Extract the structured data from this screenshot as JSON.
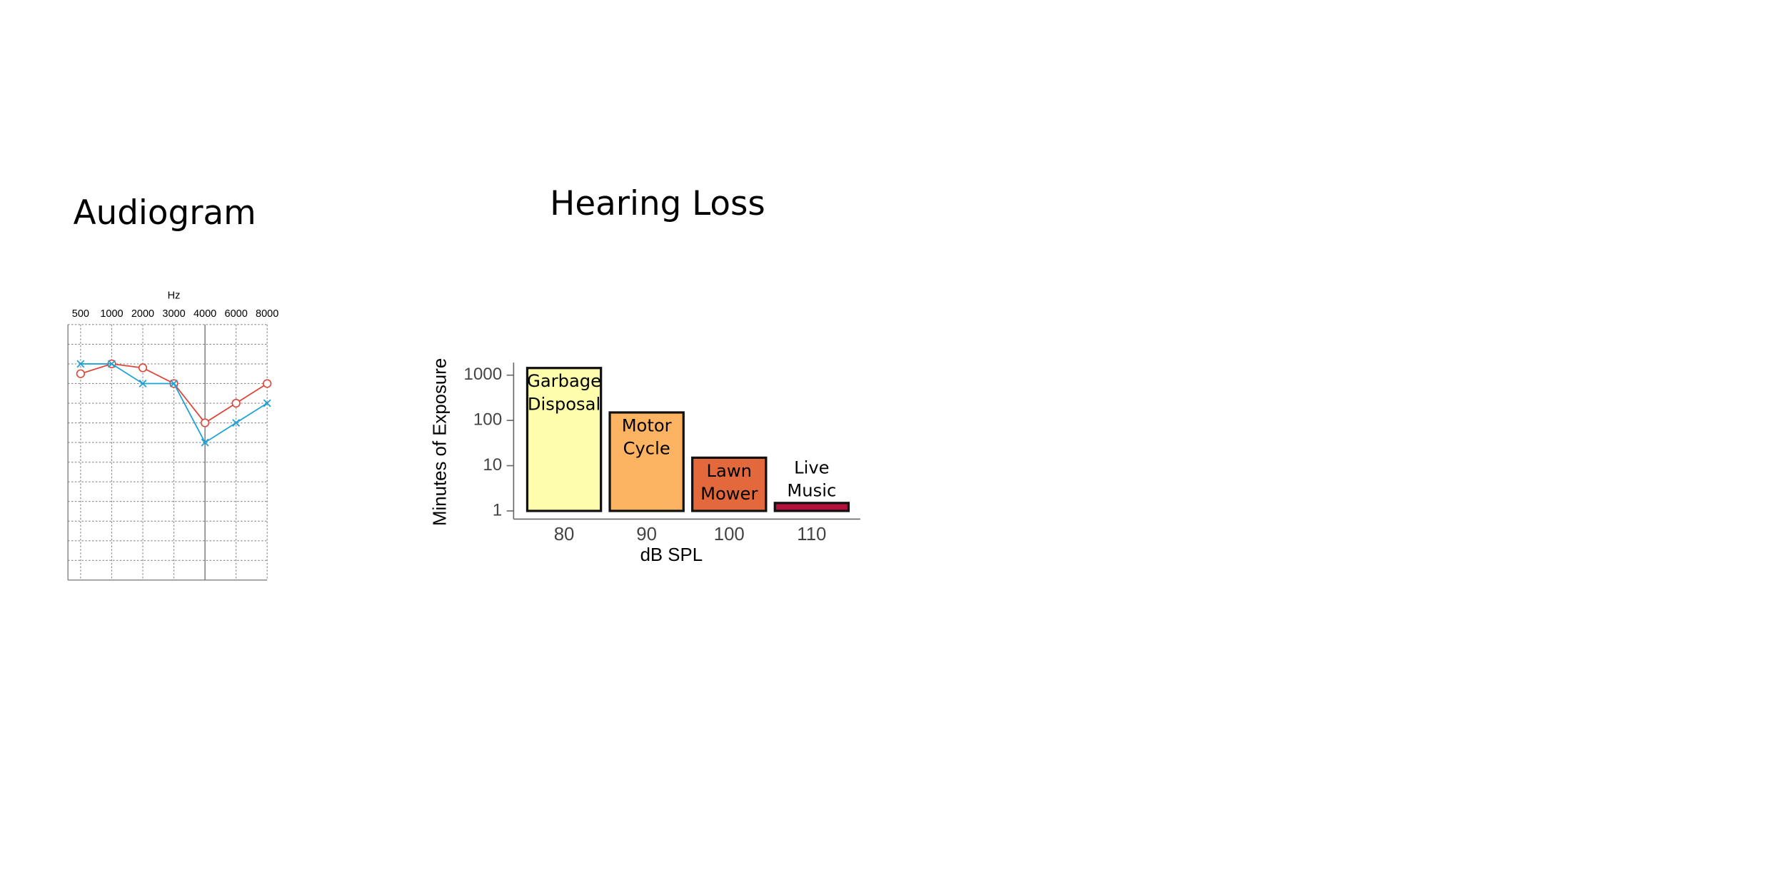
{
  "chart_data": [
    {
      "type": "line",
      "title": "Audiogram",
      "xlabel": "Hz",
      "categories": [
        "500",
        "1000",
        "2000",
        "3000",
        "4000",
        "6000",
        "8000"
      ],
      "ylim": [
        -10,
        120
      ],
      "y_inverted": true,
      "yticks": [
        -10,
        0,
        10,
        20,
        30,
        40,
        50,
        60,
        70,
        80,
        90,
        100,
        110,
        120
      ],
      "grid": true,
      "series": [
        {
          "color": "#e0453a",
          "marker": "circle",
          "values": [
            15,
            10,
            12,
            20,
            40,
            30,
            20
          ]
        },
        {
          "color": "#1fa3d6",
          "marker": "x",
          "values": [
            10,
            10,
            20,
            20,
            50,
            40,
            30
          ]
        }
      ]
    },
    {
      "type": "bar",
      "title": "Hearing Loss",
      "xlabel": "dB SPL",
      "ylabel": "Minutes of Exposure",
      "categories": [
        "80",
        "90",
        "100",
        "110"
      ],
      "log_y": true,
      "ylim": [
        0.66,
        1900
      ],
      "yticks": [
        1,
        10,
        100,
        1000
      ],
      "values": [
        1440,
        150,
        15,
        1.5
      ],
      "colors": [
        "#fdfdab",
        "#fdb462",
        "#e3683c",
        "#b3103c"
      ],
      "bar_labels": [
        [
          "Garbage",
          "Disposal"
        ],
        [
          "Motor",
          "Cycle"
        ],
        [
          "Lawn",
          "Mower"
        ],
        [
          "Live",
          "Music"
        ]
      ]
    }
  ]
}
